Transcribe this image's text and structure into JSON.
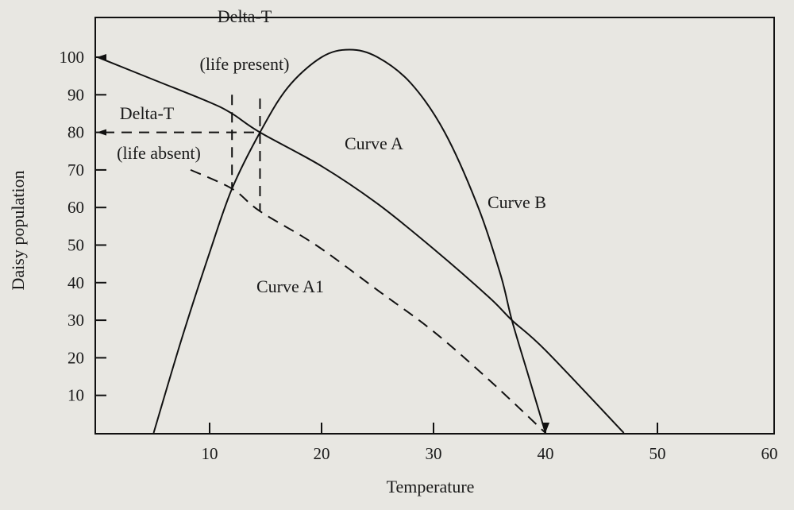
{
  "chart_data": {
    "type": "line",
    "title": "",
    "xlabel": "Temperature",
    "ylabel": "Daisy population",
    "xlim": [
      0,
      60
    ],
    "ylim": [
      0,
      107
    ],
    "x_ticks": [
      10,
      20,
      30,
      40,
      50,
      60
    ],
    "y_ticks": [
      10,
      20,
      30,
      40,
      50,
      60,
      70,
      80,
      90,
      100
    ],
    "grid": false,
    "series": [
      {
        "name": "Curve A",
        "style": "solid",
        "x": [
          0,
          5,
          10,
          12,
          14.5,
          20,
          25,
          30,
          35,
          37,
          40,
          47
        ],
        "y": [
          100,
          94,
          88,
          85,
          80,
          71,
          61,
          49,
          36,
          30,
          22,
          0
        ]
      },
      {
        "name": "Curve B",
        "style": "solid",
        "x": [
          5,
          7.5,
          10,
          12,
          14.5,
          17,
          20,
          22.5,
          25,
          28,
          31,
          34,
          36,
          37,
          38.5,
          40
        ],
        "y": [
          0,
          25,
          48,
          65,
          80,
          92,
          100,
          102,
          100,
          93,
          80,
          60,
          42,
          30,
          15,
          0
        ]
      },
      {
        "name": "Curve A1",
        "style": "dashed",
        "x": [
          8.3,
          12,
          14.5,
          19.5,
          25,
          30,
          35,
          40
        ],
        "y": [
          70,
          65,
          59,
          50,
          38,
          27,
          14,
          0
        ]
      }
    ],
    "annotations": [
      {
        "text": "Delta-T",
        "sub": "(life present)",
        "guide_x": [
          12,
          14.5
        ],
        "guide_y_top": 90
      },
      {
        "text": "Delta-T",
        "sub": "(life absent)",
        "guide_y": 80
      }
    ]
  }
}
